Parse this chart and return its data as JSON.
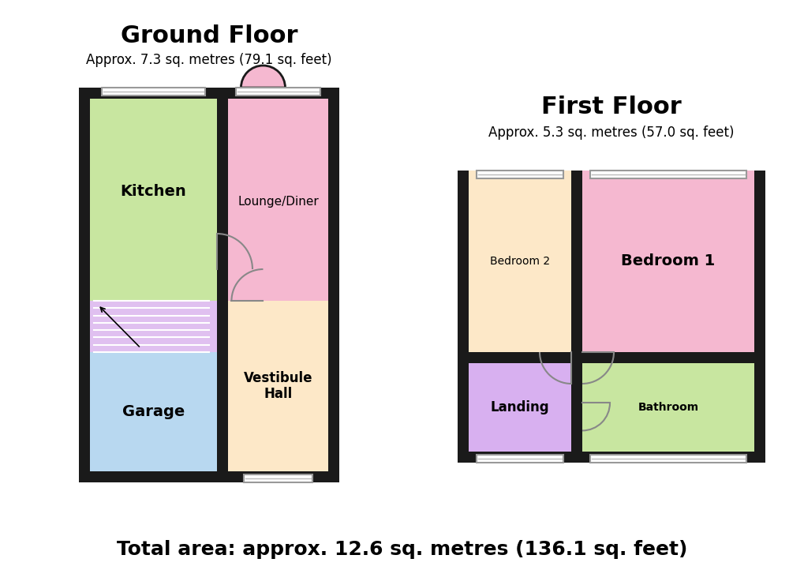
{
  "bg_color": "#ffffff",
  "wall_color": "#1a1a1a",
  "title_ground": "Ground Floor",
  "subtitle_ground": "Approx. 7.3 sq. metres (79.1 sq. feet)",
  "title_first": "First Floor",
  "subtitle_first": "Approx. 5.3 sq. metres (57.0 sq. feet)",
  "footer": "Total area: approx. 12.6 sq. metres (136.1 sq. feet)",
  "color_kitchen": "#c8e6a0",
  "color_lounge": "#f5b8d0",
  "color_garage": "#b8d8f0",
  "color_vestibule": "#fde8c8",
  "color_stair": "#e0c0f0",
  "color_bedroom1": "#f5b8d0",
  "color_bedroom2": "#fde8c8",
  "color_landing": "#d8b0f0",
  "color_bathroom": "#c8e6a0",
  "color_window": "#e8e8e8",
  "color_door": "#888888"
}
